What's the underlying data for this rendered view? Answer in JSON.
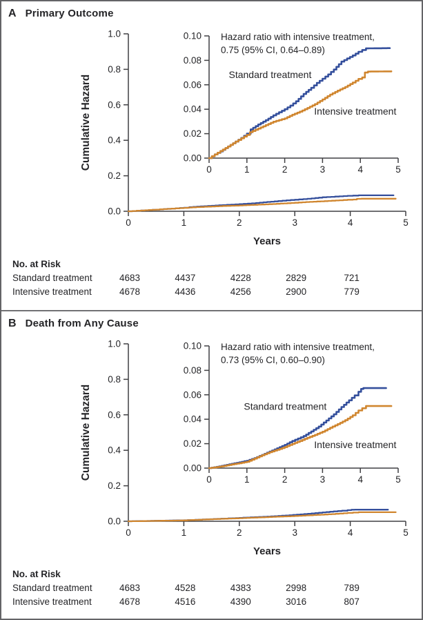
{
  "figure": {
    "colors": {
      "standard": "#344f9c",
      "intensive": "#d0862f",
      "axis": "#3f3f42",
      "text": "#242427",
      "border": "#646467",
      "divider": "#717174",
      "background": "#ffffff"
    }
  },
  "chart_data": [
    {
      "panel_letter": "A",
      "title": "Primary Outcome",
      "type": "line",
      "xlabel": "Years",
      "ylabel": "Cumulative Hazard",
      "x_range": [
        0,
        5
      ],
      "x_ticks": [
        "0",
        "1",
        "2",
        "3",
        "4",
        "5"
      ],
      "main_axis": {
        "ylim": [
          0.0,
          1.0
        ],
        "yticks": [
          "0.0",
          "0.2",
          "0.4",
          "0.6",
          "0.8",
          "1.0"
        ]
      },
      "inset_axis": {
        "ylim": [
          0.0,
          0.1
        ],
        "yticks": [
          "0.00",
          "0.02",
          "0.04",
          "0.06",
          "0.08",
          "0.10"
        ]
      },
      "annotation": [
        "Hazard ratio with intensive treatment,",
        "0.75 (95% CI, 0.64–0.89)"
      ],
      "series": [
        {
          "name": "Standard treatment",
          "color": "standard",
          "points": [
            [
              0,
              0
            ],
            [
              0.15,
              0.003
            ],
            [
              0.3,
              0.0055
            ],
            [
              0.5,
              0.0095
            ],
            [
              0.7,
              0.0135
            ],
            [
              0.85,
              0.0165
            ],
            [
              1.0,
              0.02
            ],
            [
              1.1,
              0.0235
            ],
            [
              1.3,
              0.0275
            ],
            [
              1.5,
              0.031
            ],
            [
              1.7,
              0.035
            ],
            [
              1.85,
              0.0375
            ],
            [
              2.0,
              0.04
            ],
            [
              2.15,
              0.043
            ],
            [
              2.3,
              0.0465
            ],
            [
              2.5,
              0.0525
            ],
            [
              2.7,
              0.0575
            ],
            [
              2.85,
              0.0615
            ],
            [
              3.0,
              0.065
            ],
            [
              3.15,
              0.0685
            ],
            [
              3.3,
              0.0725
            ],
            [
              3.5,
              0.079
            ],
            [
              3.65,
              0.0815
            ],
            [
              3.8,
              0.084
            ],
            [
              3.95,
              0.087
            ],
            [
              4.05,
              0.0885
            ],
            [
              4.15,
              0.0898
            ],
            [
              4.78,
              0.09
            ]
          ]
        },
        {
          "name": "Intensive treatment",
          "color": "intensive",
          "points": [
            [
              0,
              0
            ],
            [
              0.15,
              0.003
            ],
            [
              0.3,
              0.0058
            ],
            [
              0.5,
              0.0095
            ],
            [
              0.7,
              0.0135
            ],
            [
              0.85,
              0.0162
            ],
            [
              1.0,
              0.019
            ],
            [
              1.08,
              0.0212
            ],
            [
              1.3,
              0.0242
            ],
            [
              1.5,
              0.027
            ],
            [
              1.7,
              0.0298
            ],
            [
              2.0,
              0.0325
            ],
            [
              2.2,
              0.0355
            ],
            [
              2.4,
              0.038
            ],
            [
              2.6,
              0.041
            ],
            [
              2.8,
              0.0442
            ],
            [
              3.0,
              0.048
            ],
            [
              3.2,
              0.052
            ],
            [
              3.4,
              0.0552
            ],
            [
              3.6,
              0.0582
            ],
            [
              3.8,
              0.0618
            ],
            [
              3.95,
              0.0648
            ],
            [
              4.05,
              0.066
            ],
            [
              4.12,
              0.07
            ],
            [
              4.2,
              0.0708
            ],
            [
              4.82,
              0.071
            ]
          ]
        }
      ],
      "series_labels": [
        {
          "text": "Standard treatment",
          "x": 0.52,
          "v": 0.0655
        },
        {
          "text": "Intensive treatment",
          "x": 2.78,
          "v": 0.0355
        }
      ],
      "risk_table": {
        "header": "No. at Risk",
        "rows": [
          {
            "label": "Standard treatment",
            "values": [
              "4683",
              "4437",
              "4228",
              "2829",
              "721"
            ]
          },
          {
            "label": "Intensive treatment",
            "values": [
              "4678",
              "4436",
              "4256",
              "2900",
              "779"
            ]
          }
        ]
      }
    },
    {
      "panel_letter": "B",
      "title": "Death from Any Cause",
      "type": "line",
      "xlabel": "Years",
      "ylabel": "Cumulative Hazard",
      "x_range": [
        0,
        5
      ],
      "x_ticks": [
        "0",
        "1",
        "2",
        "3",
        "4",
        "5"
      ],
      "main_axis": {
        "ylim": [
          0.0,
          1.0
        ],
        "yticks": [
          "0.0",
          "0.2",
          "0.4",
          "0.6",
          "0.8",
          "1.0"
        ]
      },
      "inset_axis": {
        "ylim": [
          0.0,
          0.1
        ],
        "yticks": [
          "0.00",
          "0.02",
          "0.04",
          "0.06",
          "0.08",
          "0.10"
        ]
      },
      "annotation": [
        "Hazard ratio with intensive treatment,",
        "0.73 (95% CI, 0.60–0.90)"
      ],
      "series": [
        {
          "name": "Standard treatment",
          "color": "standard",
          "points": [
            [
              0,
              0
            ],
            [
              0.2,
              0.001
            ],
            [
              0.4,
              0.0022
            ],
            [
              0.6,
              0.0035
            ],
            [
              0.8,
              0.0047
            ],
            [
              1.0,
              0.006
            ],
            [
              1.2,
              0.0082
            ],
            [
              1.4,
              0.0108
            ],
            [
              1.6,
              0.0135
            ],
            [
              1.8,
              0.0162
            ],
            [
              2.0,
              0.019
            ],
            [
              2.2,
              0.0222
            ],
            [
              2.35,
              0.0242
            ],
            [
              2.5,
              0.0262
            ],
            [
              2.7,
              0.03
            ],
            [
              2.9,
              0.034
            ],
            [
              3.1,
              0.039
            ],
            [
              3.3,
              0.044
            ],
            [
              3.5,
              0.05
            ],
            [
              3.7,
              0.0555
            ],
            [
              3.85,
              0.0595
            ],
            [
              3.95,
              0.0625
            ],
            [
              4.02,
              0.0648
            ],
            [
              4.08,
              0.0655
            ],
            [
              4.68,
              0.0655
            ]
          ]
        },
        {
          "name": "Intensive treatment",
          "color": "intensive",
          "points": [
            [
              0,
              0
            ],
            [
              0.2,
              0.0008
            ],
            [
              0.4,
              0.0018
            ],
            [
              0.6,
              0.003
            ],
            [
              0.8,
              0.004
            ],
            [
              1.0,
              0.0052
            ],
            [
              1.2,
              0.0078
            ],
            [
              1.4,
              0.0105
            ],
            [
              1.6,
              0.013
            ],
            [
              1.8,
              0.015
            ],
            [
              2.0,
              0.0172
            ],
            [
              2.2,
              0.0198
            ],
            [
              2.4,
              0.0222
            ],
            [
              2.6,
              0.0248
            ],
            [
              2.8,
              0.0272
            ],
            [
              3.0,
              0.0298
            ],
            [
              3.2,
              0.033
            ],
            [
              3.4,
              0.036
            ],
            [
              3.6,
              0.0392
            ],
            [
              3.8,
              0.0432
            ],
            [
              3.95,
              0.0472
            ],
            [
              4.05,
              0.049
            ],
            [
              4.15,
              0.0508
            ],
            [
              4.82,
              0.0508
            ]
          ]
        }
      ],
      "series_labels": [
        {
          "text": "Standard treatment",
          "x": 0.92,
          "v": 0.0478
        },
        {
          "text": "Intensive treatment",
          "x": 2.78,
          "v": 0.0165
        }
      ],
      "risk_table": {
        "header": "No. at Risk",
        "rows": [
          {
            "label": "Standard treatment",
            "values": [
              "4683",
              "4528",
              "4383",
              "2998",
              "789"
            ]
          },
          {
            "label": "Intensive treatment",
            "values": [
              "4678",
              "4516",
              "4390",
              "3016",
              "807"
            ]
          }
        ]
      }
    }
  ]
}
